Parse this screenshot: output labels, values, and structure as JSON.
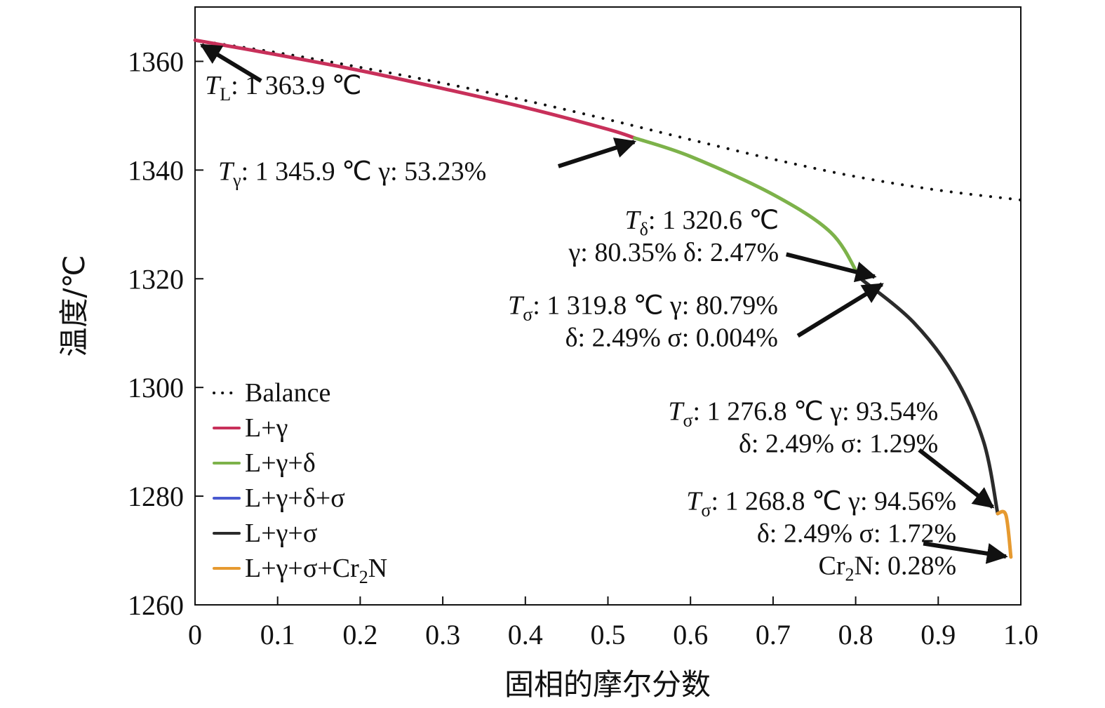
{
  "chart_data": {
    "type": "line",
    "title": "",
    "xlabel": "固相的摩尔分数",
    "ylabel": "温度/℃",
    "xlim": [
      0,
      1.0
    ],
    "ylim": [
      1260,
      1370
    ],
    "x_ticks": [
      "0",
      "0.1",
      "0.2",
      "0.3",
      "0.4",
      "0.5",
      "0.6",
      "0.7",
      "0.8",
      "0.9",
      "1.0"
    ],
    "x_tick_values": [
      0,
      0.1,
      0.2,
      0.3,
      0.4,
      0.5,
      0.6,
      0.7,
      0.8,
      0.9,
      1.0
    ],
    "y_ticks": [
      "1260",
      "1280",
      "1300",
      "1320",
      "1340",
      "1360"
    ],
    "y_tick_values": [
      1260,
      1280,
      1300,
      1320,
      1340,
      1360
    ],
    "grid": false,
    "legend_position": "bottom-left",
    "series": [
      {
        "name": "Balance",
        "style": "dotted",
        "color": "#111111",
        "points": [
          [
            0,
            1363.9
          ],
          [
            0.1,
            1361.6
          ],
          [
            0.2,
            1358.9
          ],
          [
            0.3,
            1356.0
          ],
          [
            0.4,
            1352.8
          ],
          [
            0.5,
            1349.3
          ],
          [
            0.6,
            1345.6
          ],
          [
            0.7,
            1342.0
          ],
          [
            0.8,
            1338.8
          ],
          [
            0.9,
            1336.3
          ],
          [
            1.0,
            1334.5
          ]
        ]
      },
      {
        "name": "L+γ",
        "style": "solid",
        "color": "#c8305a",
        "points": [
          [
            0,
            1363.9
          ],
          [
            0.1,
            1361.2
          ],
          [
            0.2,
            1358.3
          ],
          [
            0.3,
            1355.0
          ],
          [
            0.4,
            1351.5
          ],
          [
            0.5,
            1347.5
          ],
          [
            0.5323,
            1345.9
          ]
        ]
      },
      {
        "name": "L+γ+δ",
        "style": "solid",
        "color": "#7db24a",
        "points": [
          [
            0.5323,
            1345.9
          ],
          [
            0.6,
            1342.5
          ],
          [
            0.7,
            1335.5
          ],
          [
            0.77,
            1328.5
          ],
          [
            0.8035,
            1320.6
          ]
        ]
      },
      {
        "name": "L+γ+δ+σ",
        "style": "solid",
        "color": "#4a5ad0",
        "points": [
          [
            0.8035,
            1320.6
          ],
          [
            0.8079,
            1319.8
          ]
        ]
      },
      {
        "name": "L+γ+σ",
        "style": "solid",
        "color": "#2b2b2b",
        "points": [
          [
            0.8079,
            1319.8
          ],
          [
            0.87,
            1312.0
          ],
          [
            0.92,
            1302.0
          ],
          [
            0.955,
            1290.0
          ],
          [
            0.972,
            1276.8
          ]
        ]
      },
      {
        "name": "L+γ+σ+Cr2N",
        "legend_text_main": "L+γ+σ+Cr",
        "legend_text_sub": "2",
        "legend_text_tail": "N",
        "style": "solid",
        "color": "#e69a30",
        "points": [
          [
            0.972,
            1276.8
          ],
          [
            0.982,
            1276.5
          ],
          [
            0.988,
            1268.8
          ]
        ]
      }
    ],
    "annotations": [
      {
        "id": "TL",
        "lines": [
          [
            "T",
            "L",
            ": 1 363.9 ℃"
          ]
        ],
        "anchor": "start",
        "text_xy": [
          0.012,
          1354.0
        ],
        "arrow_from": [
          0.08,
          1356.4
        ],
        "arrow_to": [
          0.008,
          1363.0
        ]
      },
      {
        "id": "Tgamma",
        "lines": [
          [
            "T",
            "γ",
            ": 1 345.9 ℃ γ: 53.23%"
          ]
        ],
        "anchor": "start",
        "text_xy": [
          0.028,
          1338.2
        ],
        "arrow_from": [
          0.44,
          1340.7
        ],
        "arrow_to": [
          0.532,
          1345.2
        ]
      },
      {
        "id": "Tdelta",
        "lines": [
          [
            "T",
            "δ",
            ": 1 320.6 ℃"
          ],
          [
            "",
            "",
            "γ: 80.35% δ: 2.47%"
          ]
        ],
        "anchor": "end",
        "text_xy": [
          0.707,
          1329.2
        ],
        "arrow_from": [
          0.716,
          1324.5
        ],
        "arrow_to": [
          0.823,
          1320.4
        ]
      },
      {
        "id": "Tsigma1",
        "lines": [
          [
            "T",
            "σ",
            ": 1 319.8 ℃ γ: 80.79%"
          ],
          [
            "",
            "",
            "δ: 2.49% σ: 0.004%"
          ]
        ],
        "anchor": "end",
        "text_xy": [
          0.706,
          1313.5
        ],
        "arrow_from": [
          0.73,
          1309.5
        ],
        "arrow_to": [
          0.832,
          1319.0
        ]
      },
      {
        "id": "Tsigma2",
        "lines": [
          [
            "T",
            "σ",
            ": 1 276.8 ℃ γ: 93.54%"
          ],
          [
            "",
            "",
            "δ: 2.49% σ: 1.29%"
          ]
        ],
        "anchor": "end",
        "text_xy": [
          0.9,
          1294.0
        ],
        "arrow_from": [
          0.877,
          1288.5
        ],
        "arrow_to": [
          0.966,
          1278.0
        ]
      },
      {
        "id": "Tsigma3",
        "lines": [
          [
            "T",
            "σ",
            ": 1 268.8 ℃ γ: 94.56%"
          ],
          [
            "",
            "",
            "δ: 2.49% σ: 1.72%"
          ],
          [
            "",
            "",
            "Cr",
            "2",
            "N: 0.28%"
          ]
        ],
        "anchor": "end",
        "text_xy": [
          0.922,
          1277.5
        ],
        "arrow_from": [
          0.882,
          1271.3
        ],
        "arrow_to": [
          0.982,
          1268.9
        ]
      }
    ]
  }
}
